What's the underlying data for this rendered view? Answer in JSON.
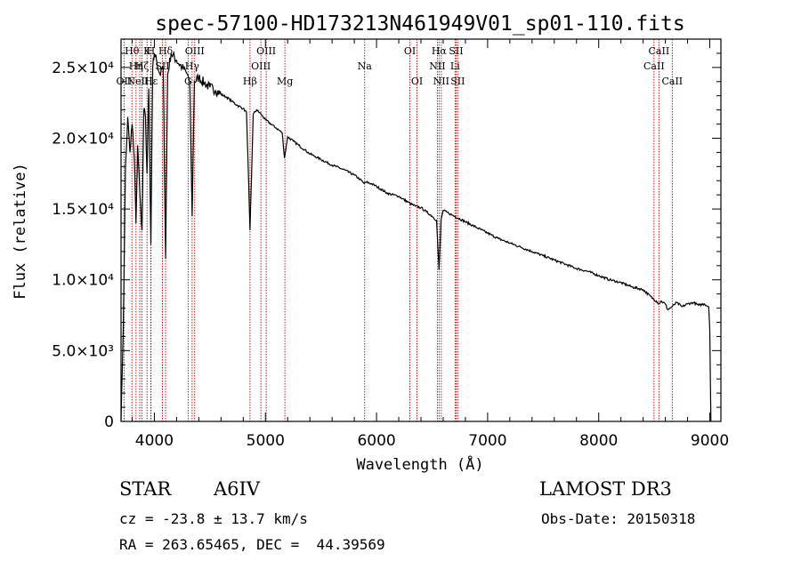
{
  "chart_data": {
    "type": "line",
    "title": "spec-57100-HD173213N461949V01_sp01-110.fits",
    "xlabel": "Wavelength (Å)",
    "ylabel": "Flux (relative)",
    "xlim": [
      3700,
      9100
    ],
    "ylim": [
      0,
      27000
    ],
    "x_ticks": [
      {
        "value": 4000,
        "label": "4000"
      },
      {
        "value": 5000,
        "label": "5000"
      },
      {
        "value": 6000,
        "label": "6000"
      },
      {
        "value": 7000,
        "label": "7000"
      },
      {
        "value": 8000,
        "label": "8000"
      },
      {
        "value": 9000,
        "label": "9000"
      }
    ],
    "y_ticks": [
      {
        "value": 0,
        "label": "0"
      },
      {
        "value": 5000,
        "label": "5.0×10³"
      },
      {
        "value": 10000,
        "label": "1.0×10⁴"
      },
      {
        "value": 15000,
        "label": "1.5×10⁴"
      },
      {
        "value": 20000,
        "label": "2.0×10⁴"
      },
      {
        "value": 25000,
        "label": "2.5×10⁴"
      }
    ],
    "series": [
      {
        "name": "spectrum",
        "x": [
          3700,
          3720,
          3740,
          3760,
          3780,
          3800,
          3820,
          3835,
          3850,
          3870,
          3889,
          3905,
          3920,
          3934,
          3950,
          3968,
          3985,
          4000,
          4020,
          4050,
          4080,
          4101,
          4120,
          4150,
          4200,
          4250,
          4300,
          4320,
          4340,
          4360,
          4400,
          4450,
          4500,
          4550,
          4600,
          4650,
          4700,
          4750,
          4800,
          4830,
          4861,
          4890,
          4920,
          4960,
          5000,
          5050,
          5100,
          5150,
          5172,
          5200,
          5250,
          5300,
          5350,
          5400,
          5450,
          5500,
          5600,
          5700,
          5800,
          5850,
          5890,
          5910,
          5950,
          6000,
          6100,
          6200,
          6300,
          6350,
          6400,
          6450,
          6500,
          6540,
          6563,
          6580,
          6600,
          6650,
          6700,
          6800,
          6900,
          7000,
          7100,
          7200,
          7300,
          7400,
          7500,
          7600,
          7700,
          7800,
          7900,
          8000,
          8100,
          8200,
          8300,
          8400,
          8498,
          8520,
          8542,
          8560,
          8600,
          8620,
          8662,
          8700,
          8750,
          8800,
          8850,
          8900,
          8950,
          8990,
          9000,
          9010
        ],
        "y": [
          100,
          6500,
          18000,
          21500,
          19000,
          21000,
          18500,
          14000,
          19500,
          16000,
          13500,
          22000,
          21500,
          17500,
          23500,
          12500,
          25000,
          26000,
          25500,
          24500,
          25000,
          11500,
          24500,
          26000,
          25500,
          25000,
          24500,
          23500,
          14500,
          24000,
          24300,
          23900,
          23600,
          23400,
          23100,
          22900,
          22600,
          22300,
          22100,
          21800,
          13500,
          21700,
          22000,
          21700,
          21300,
          21000,
          20700,
          20400,
          18600,
          20100,
          19800,
          19500,
          19200,
          18900,
          18700,
          18500,
          18100,
          17800,
          17400,
          17100,
          16800,
          16900,
          16800,
          16600,
          16100,
          15900,
          15400,
          15200,
          15100,
          14800,
          14500,
          14200,
          10700,
          14200,
          14900,
          14700,
          14500,
          14100,
          13700,
          13300,
          12900,
          12600,
          12300,
          12000,
          11700,
          11400,
          11100,
          10800,
          10600,
          10300,
          10000,
          9800,
          9500,
          9300,
          8600,
          8500,
          8300,
          8500,
          8300,
          7900,
          8100,
          8400,
          8100,
          8300,
          8400,
          8200,
          8300,
          8100,
          6500,
          0
        ]
      }
    ],
    "lines": [
      {
        "wl": 3798,
        "label": "Hθ",
        "row": 0
      },
      {
        "wl": 3835,
        "label": "Hη",
        "row": 1
      },
      {
        "wl": 3727,
        "label": "OII",
        "row": 2
      },
      {
        "wl": 3869,
        "label": "NeIII",
        "row": 2
      },
      {
        "wl": 3889,
        "label": "Hζ",
        "row": 1
      },
      {
        "wl": 3934,
        "label": "K",
        "row": 0
      },
      {
        "wl": 3968,
        "label": "H",
        "row": 0
      },
      {
        "wl": 3970,
        "label": "Hε",
        "row": 2
      },
      {
        "wl": 4101,
        "label": "Hδ",
        "row": 0
      },
      {
        "wl": 4072,
        "label": "SII",
        "row": 1
      },
      {
        "wl": 4304,
        "label": "G",
        "row": 2
      },
      {
        "wl": 4340,
        "label": "Hγ",
        "row": 1
      },
      {
        "wl": 4363,
        "label": "OIII",
        "row": 0
      },
      {
        "wl": 4861,
        "label": "Hβ",
        "row": 2
      },
      {
        "wl": 4959,
        "label": "OIII",
        "row": 1
      },
      {
        "wl": 5007,
        "label": "OIII",
        "row": 0
      },
      {
        "wl": 5175,
        "label": "Mg",
        "row": 2
      },
      {
        "wl": 5893,
        "label": "Na",
        "row": 1
      },
      {
        "wl": 6300,
        "label": "OI",
        "row": 0
      },
      {
        "wl": 6364,
        "label": "OI",
        "row": 2
      },
      {
        "wl": 6548,
        "label": "NII",
        "row": 1
      },
      {
        "wl": 6563,
        "label": "Hα",
        "row": 0
      },
      {
        "wl": 6583,
        "label": "NII",
        "row": 2
      },
      {
        "wl": 6707,
        "label": "Li",
        "row": 1
      },
      {
        "wl": 6716,
        "label": "SII",
        "row": 0
      },
      {
        "wl": 6731,
        "label": "SII",
        "row": 2
      },
      {
        "wl": 8498,
        "label": "CaII",
        "row": 1
      },
      {
        "wl": 8542,
        "label": "CaII",
        "row": 0
      },
      {
        "wl": 8662,
        "label": "CaII",
        "row": 2
      }
    ]
  },
  "info": {
    "class_label": "STAR",
    "subclass": "A6IV",
    "survey": "LAMOST DR3",
    "cz": "cz = -23.8 ± 13.7 km/s",
    "obs_date": "Obs-Date: 20150318",
    "coords": "RA = 263.65465, DEC =  44.39569"
  },
  "colors": {
    "spectrum": "#000000",
    "line_marker": "#c00000",
    "axes": "#000000"
  }
}
